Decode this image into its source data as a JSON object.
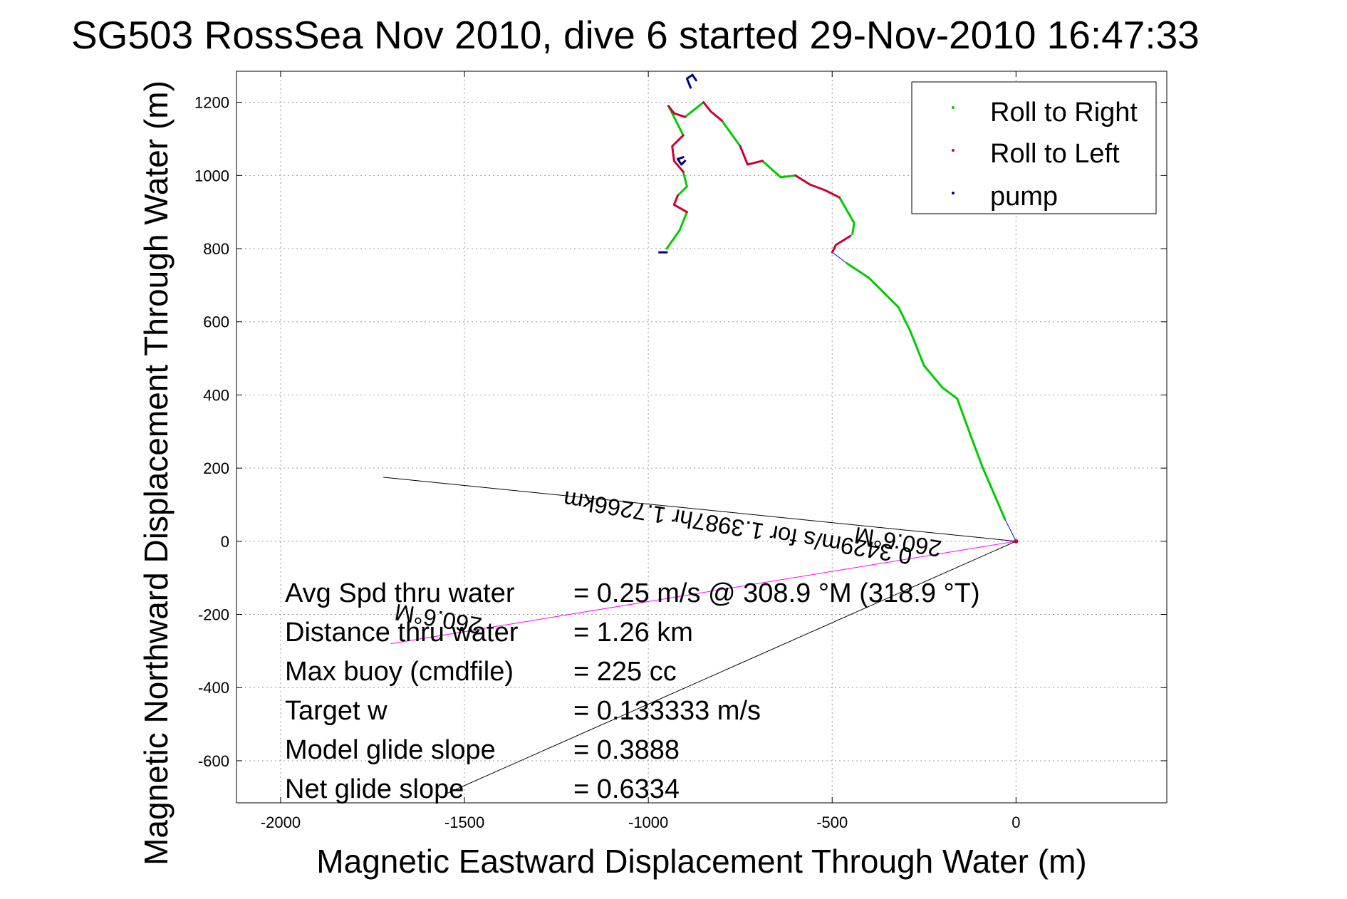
{
  "chart_data": {
    "type": "line",
    "title": "SG503 RossSea Nov 2010, dive 6 started 29-Nov-2010 16:47:33",
    "xlabel": "Magnetic Eastward Displacement Through Water (m)",
    "ylabel": "Magnetic Northward Displacement Through Water (m)",
    "xlim": [
      -2120,
      410
    ],
    "ylim": [
      -715,
      1285
    ],
    "xticks": [
      -2000,
      -1500,
      -1000,
      -500,
      0
    ],
    "yticks": [
      -600,
      -400,
      -200,
      0,
      200,
      400,
      600,
      800,
      1000,
      1200
    ],
    "xtick_labels": [
      "-2000",
      "-1500",
      "-1000",
      "-500",
      "0"
    ],
    "ytick_labels": [
      "-600",
      "-400",
      "-200",
      "0",
      "200",
      "400",
      "600",
      "800",
      "1000",
      "1200"
    ],
    "grid": true,
    "legend_position": "top-right",
    "legend": [
      {
        "label": "Roll to Right",
        "color": "#00cc00"
      },
      {
        "label": "Roll to Left",
        "color": "#cc0033"
      },
      {
        "label": "pump",
        "color": "#000080"
      }
    ],
    "series": [
      {
        "name": "Roll to Right",
        "color": "#00cc00",
        "segments": [
          [
            [
              -30,
              60
            ],
            [
              -90,
              200
            ],
            [
              -120,
              280
            ],
            [
              -160,
              390
            ],
            [
              -200,
              420
            ],
            [
              -250,
              480
            ],
            [
              -290,
              580
            ],
            [
              -320,
              640
            ],
            [
              -400,
              720
            ],
            [
              -460,
              760
            ]
          ],
          [
            [
              -445,
              840
            ],
            [
              -440,
              870
            ],
            [
              -480,
              940
            ]
          ],
          [
            [
              -600,
              1000
            ],
            [
              -640,
              995
            ],
            [
              -690,
              1040
            ]
          ],
          [
            [
              -750,
              1080
            ],
            [
              -800,
              1150
            ]
          ],
          [
            [
              -850,
              1200
            ],
            [
              -900,
              1160
            ]
          ],
          [
            [
              -945,
              1190
            ],
            [
              -920,
              1140
            ],
            [
              -905,
              1110
            ]
          ],
          [
            [
              -905,
              1010
            ],
            [
              -895,
              970
            ],
            [
              -920,
              945
            ]
          ],
          [
            [
              -895,
              900
            ],
            [
              -915,
              850
            ],
            [
              -950,
              800
            ]
          ]
        ]
      },
      {
        "name": "Roll to Left",
        "color": "#cc0033",
        "segments": [
          [
            [
              -500,
              790
            ],
            [
              -490,
              810
            ],
            [
              -450,
              835
            ]
          ],
          [
            [
              -480,
              940
            ],
            [
              -520,
              960
            ],
            [
              -560,
              975
            ],
            [
              -600,
              1000
            ]
          ],
          [
            [
              -690,
              1040
            ],
            [
              -730,
              1030
            ],
            [
              -750,
              1080
            ]
          ],
          [
            [
              -800,
              1150
            ],
            [
              -830,
              1175
            ],
            [
              -850,
              1200
            ]
          ],
          [
            [
              -900,
              1160
            ],
            [
              -930,
              1170
            ],
            [
              -945,
              1190
            ]
          ],
          [
            [
              -905,
              1110
            ],
            [
              -935,
              1080
            ],
            [
              -930,
              1040
            ],
            [
              -905,
              1010
            ]
          ],
          [
            [
              -920,
              945
            ],
            [
              -930,
              920
            ],
            [
              -895,
              900
            ]
          ]
        ]
      },
      {
        "name": "pump",
        "color": "#000080",
        "segments": [
          [
            [
              -870,
              1260
            ],
            [
              -880,
              1275
            ],
            [
              -895,
              1265
            ],
            [
              -885,
              1240
            ]
          ],
          [
            [
              -900,
              1040
            ],
            [
              -910,
              1030
            ],
            [
              -920,
              1045
            ],
            [
              -905,
              1050
            ]
          ],
          [
            [
              -970,
              790
            ],
            [
              -950,
              790
            ]
          ]
        ]
      },
      {
        "name": "track",
        "color": "#0000ff",
        "points": [
          [
            0,
            0
          ],
          [
            -30,
            60
          ],
          [
            -90,
            200
          ],
          [
            -120,
            280
          ],
          [
            -160,
            390
          ],
          [
            -200,
            420
          ],
          [
            -250,
            480
          ],
          [
            -290,
            580
          ],
          [
            -320,
            640
          ],
          [
            -400,
            720
          ],
          [
            -460,
            760
          ],
          [
            -500,
            790
          ]
        ]
      },
      {
        "name": "current",
        "color": "#ff00ff",
        "points": [
          [
            0,
            0
          ],
          [
            -1700,
            -280
          ]
        ]
      },
      {
        "name": "lines",
        "color": "#000000",
        "segments": [
          [
            [
              0,
              0
            ],
            [
              -1720,
              175
            ]
          ],
          [
            [
              0,
              0
            ],
            [
              -1550,
              -690
            ]
          ]
        ]
      }
    ],
    "annotations": [
      {
        "text": "0.3429m/s for 1.3987hr 1.7266km",
        "x": -280,
        "y": -20,
        "angle": 189.4
      },
      {
        "text": "260.6°M",
        "x": -200,
        "y": 0,
        "angle": 189.4
      },
      {
        "text": "260.6°M",
        "x": -1450,
        "y": -210,
        "angle": 189.4
      }
    ],
    "stats": [
      {
        "label": "Avg Spd thru water",
        "value": "=  0.25 m/s @ 308.9 °M (318.9 °T)"
      },
      {
        "label": "Distance thru water",
        "value": "=  1.26 km"
      },
      {
        "label": "Max buoy (cmdfile)",
        "value": "= 225 cc"
      },
      {
        "label": "Target w",
        "value": "= 0.133333 m/s"
      },
      {
        "label": "Model glide slope",
        "value": "= 0.3888"
      },
      {
        "label": "Net glide slope",
        "value": "= 0.6334"
      }
    ]
  }
}
